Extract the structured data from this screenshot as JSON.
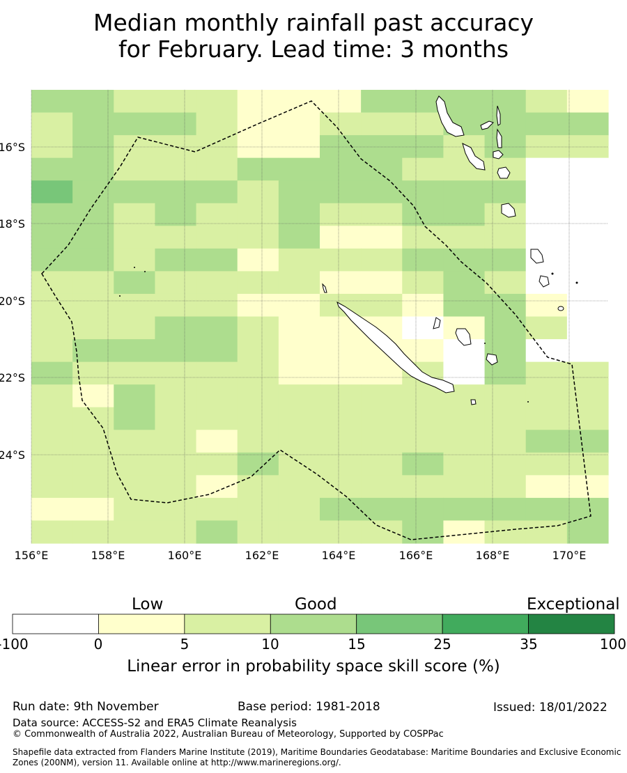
{
  "title": {
    "line1": "Median monthly rainfall past accuracy",
    "line2": "for February. Lead time: 3 months"
  },
  "map": {
    "lat_labels": [
      "16°S",
      "18°S",
      "20°S",
      "22°S",
      "24°S"
    ],
    "lon_labels": [
      "156°E",
      "158°E",
      "160°E",
      "162°E",
      "164°E",
      "166°E",
      "168°E",
      "170°E"
    ],
    "grid": [
      "33222111333321",
      "23332112223333",
      "23222113332322",
      "33222333322200",
      "43333233333300",
      "33232232233200",
      "33222231122200",
      "33233122233300",
      "22322221123200",
      "22222112213310",
      "22233211101320",
      "23333211110300",
      "32222211120322",
      "21322222222222",
      "22322222222222",
      "22221222222233",
      "22222322232222",
      "22221222222211",
      "11222223333333",
      "22223222231223"
    ]
  },
  "legend": {
    "category_low": "Low",
    "category_good": "Good",
    "category_exceptional": "Exceptional",
    "ticks": [
      "-100",
      "0",
      "5",
      "10",
      "15",
      "25",
      "35",
      "100"
    ],
    "colors": [
      "#ffffff",
      "#ffffcc",
      "#d9f0a3",
      "#addd8e",
      "#78c679",
      "#41ab5d",
      "#238443"
    ],
    "title": "Linear error in probability space skill score (%)"
  },
  "footer": {
    "run_date": "Run date: 9th November",
    "base_period": "Base period: 1981-2018",
    "issued": "Issued: 18/01/2022",
    "data_source": "Data source: ACCESS-S2 and ERA5 Climate Reanalysis",
    "copyright": "© Commonwealth of Australia 2022, Australian Bureau of Meteorology, Supported by COSPPac",
    "shapefile": "Shapefile data extracted from Flanders Marine Institute (2019), Maritime Boundaries Geodatabase: Maritime Boundaries and Exclusive Economic Zones (200NM), version 11. Available online at http://www.marineregions.org/."
  }
}
